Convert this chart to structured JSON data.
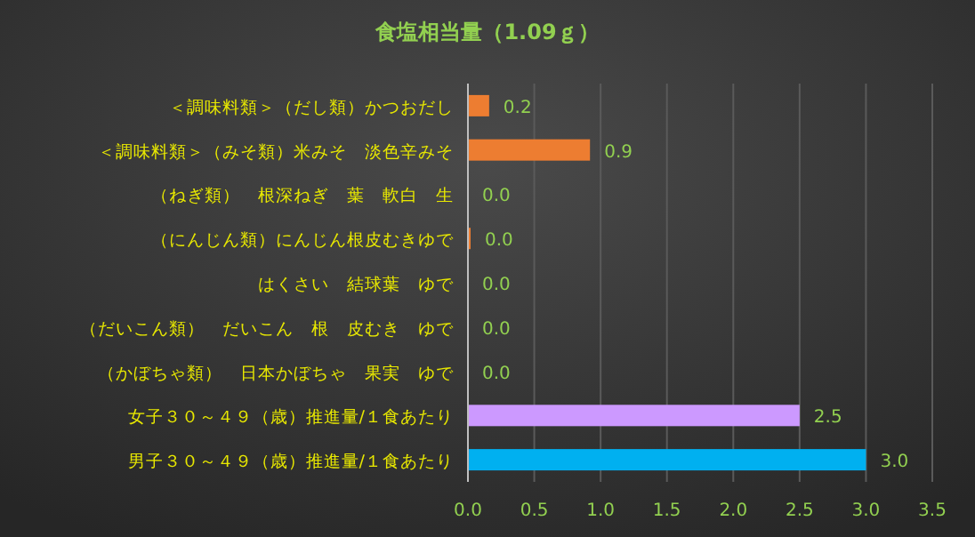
{
  "chart_data": {
    "type": "bar",
    "orientation": "horizontal",
    "title": "食塩相当量（1.09ｇ）",
    "categories": [
      "＜調味料類＞（だし類）かつおだし",
      "＜調味料類＞（みそ類）米みそ　淡色辛みそ",
      "（ねぎ類）　根深ねぎ　葉　軟白　生",
      "（にんじん類）にんじん根皮むきゆで",
      "はくさい　結球葉　ゆで",
      "（だいこん類）　だいこん　根　皮むき　ゆで",
      "（かぼちゃ類）　日本かぼちゃ　果実　ゆで",
      "女子３０～４９（歳）推進量/１食あたり",
      "男子３０～４９（歳）推進量/１食あたり"
    ],
    "values": [
      0.16,
      0.92,
      0,
      0.02,
      0,
      0,
      0,
      2.5,
      3.0
    ],
    "value_labels": [
      "0.2",
      "0.9",
      "0.0",
      "0.0",
      "0.0",
      "0.0",
      "0.0",
      "2.5",
      "3.0"
    ],
    "colors": [
      "#ed7d31",
      "#ed7d31",
      "#ed7d31",
      "#ed7d31",
      "#ed7d31",
      "#ed7d31",
      "#ed7d31",
      "#cc99ff",
      "#00b0f0"
    ],
    "xlim": [
      0,
      3.5
    ],
    "xticks": [
      {
        "value": 0,
        "label": "0.0"
      },
      {
        "value": 0.5,
        "label": "0.5"
      },
      {
        "value": 1,
        "label": "1.0"
      },
      {
        "value": 1.5,
        "label": "1.5"
      },
      {
        "value": 2,
        "label": "2.0"
      },
      {
        "value": 2.5,
        "label": "2.5"
      },
      {
        "value": 3,
        "label": "3.0"
      },
      {
        "value": 3.5,
        "label": "3.5"
      }
    ],
    "grid": "x"
  }
}
